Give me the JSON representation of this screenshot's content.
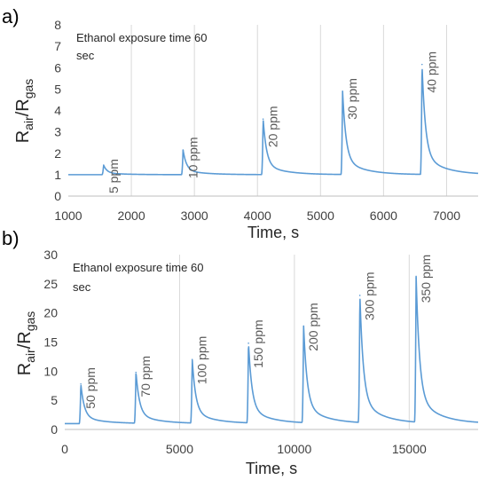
{
  "chart_data": [
    {
      "panel": "a)",
      "type": "line",
      "annotation": [
        "Ethanol exposure time 60",
        "sec"
      ],
      "xlabel": "Time, s",
      "ylabel_main": "R",
      "ylabel_sub1": "air",
      "ylabel_mid": "/R",
      "ylabel_sub2": "gas",
      "xlim": [
        1000,
        7500
      ],
      "ylim": [
        0,
        8
      ],
      "xticks": [
        1000,
        2000,
        3000,
        4000,
        5000,
        6000,
        7000
      ],
      "yticks": [
        0,
        1,
        2,
        3,
        4,
        5,
        6,
        7,
        8
      ],
      "grid": "vertical",
      "baseline": 1.0,
      "series_color": "#5b9bd5",
      "peaks": [
        {
          "t": 1560,
          "peak": 1.45,
          "label": "5 ppm"
        },
        {
          "t": 2820,
          "peak": 2.15,
          "label": "10 ppm"
        },
        {
          "t": 4090,
          "peak": 3.6,
          "label": "20 ppm"
        },
        {
          "t": 5350,
          "peak": 4.9,
          "label": "30 ppm"
        },
        {
          "t": 6610,
          "peak": 6.15,
          "label": "40 ppm"
        }
      ]
    },
    {
      "panel": "b)",
      "type": "line",
      "annotation": [
        "Ethanol exposure time 60",
        "sec"
      ],
      "xlabel": "Time, s",
      "ylabel_main": "R",
      "ylabel_sub1": "air",
      "ylabel_mid": "/R",
      "ylabel_sub2": "gas",
      "xlim": [
        0,
        18000
      ],
      "ylim": [
        0,
        30
      ],
      "xticks": [
        0,
        5000,
        10000,
        15000
      ],
      "yticks": [
        0,
        5,
        10,
        15,
        20,
        25,
        30
      ],
      "grid": "vertical",
      "baseline": 1.0,
      "series_color": "#5b9bd5",
      "peaks": [
        {
          "t": 700,
          "peak": 7.8,
          "label": "50 ppm"
        },
        {
          "t": 3100,
          "peak": 9.8,
          "label": "70 ppm"
        },
        {
          "t": 5550,
          "peak": 12.0,
          "label": "100 ppm"
        },
        {
          "t": 8000,
          "peak": 14.8,
          "label": "150 ppm"
        },
        {
          "t": 10400,
          "peak": 17.7,
          "label": "200 ppm"
        },
        {
          "t": 12850,
          "peak": 23.0,
          "label": "300 ppm"
        },
        {
          "t": 15300,
          "peak": 26.0,
          "label": "350 ppm"
        }
      ]
    }
  ]
}
